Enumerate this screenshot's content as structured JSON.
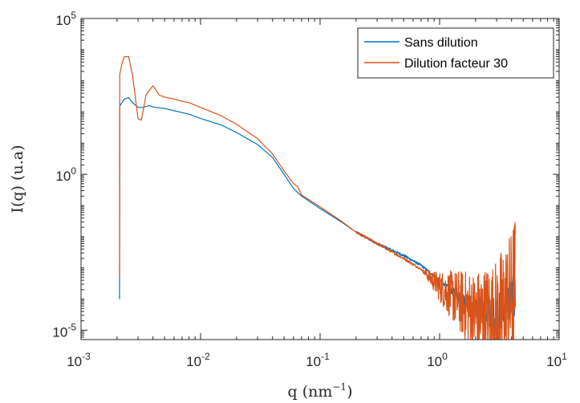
{
  "chart_data": {
    "type": "line",
    "title": "",
    "xlabel": {
      "text": "q (nm",
      "sup": "−1",
      "suffix": ")"
    },
    "ylabel": "I(q) (u.a)",
    "xscale": "log",
    "yscale": "log",
    "xlim": [
      0.001,
      10
    ],
    "ylim": [
      5e-06,
      100000
    ],
    "x_ticks": [
      {
        "value": 0.001,
        "base": "10",
        "exp": "-3"
      },
      {
        "value": 0.01,
        "base": "10",
        "exp": "-2"
      },
      {
        "value": 0.1,
        "base": "10",
        "exp": "-1"
      },
      {
        "value": 1,
        "base": "10",
        "exp": "0"
      },
      {
        "value": 10,
        "base": "10",
        "exp": "1"
      }
    ],
    "y_ticks": [
      {
        "value": 1e-05,
        "base": "10",
        "exp": "-5"
      },
      {
        "value": 1,
        "base": "10",
        "exp": "0"
      },
      {
        "value": 100000,
        "base": "10",
        "exp": "5"
      }
    ],
    "grid": false,
    "legend_position": "top-right",
    "series": [
      {
        "name": "Sans dilution",
        "color": "#0072BD",
        "noise_from_q": 1.0,
        "noise_amp_decades": 0.9,
        "points": [
          [
            0.0021,
            150
          ],
          [
            0.0023,
            260
          ],
          [
            0.0025,
            290
          ],
          [
            0.0027,
            200
          ],
          [
            0.003,
            140
          ],
          [
            0.0033,
            140
          ],
          [
            0.0037,
            160
          ],
          [
            0.0042,
            140
          ],
          [
            0.005,
            130
          ],
          [
            0.006,
            110
          ],
          [
            0.008,
            85
          ],
          [
            0.01,
            62
          ],
          [
            0.015,
            38
          ],
          [
            0.02,
            22
          ],
          [
            0.03,
            9
          ],
          [
            0.04,
            3.5
          ],
          [
            0.05,
            1.0
          ],
          [
            0.06,
            0.35
          ],
          [
            0.07,
            0.2
          ],
          [
            0.1,
            0.08
          ],
          [
            0.15,
            0.03
          ],
          [
            0.2,
            0.014
          ],
          [
            0.3,
            0.006
          ],
          [
            0.5,
            0.0025
          ],
          [
            0.7,
            0.0012
          ],
          [
            1.0,
            0.0004
          ],
          [
            1.5,
            0.0001
          ],
          [
            2.0,
            5e-05
          ],
          [
            3.0,
            3e-05
          ],
          [
            4.0,
            0.0001
          ],
          [
            4.3,
            0.0001
          ]
        ]
      },
      {
        "name": "Dilution facteur 30",
        "color": "#D95319",
        "noise_from_q": 0.7,
        "noise_amp_decades": 2.2,
        "points": [
          [
            0.0021,
            1500
          ],
          [
            0.0022,
            3500
          ],
          [
            0.0023,
            6000
          ],
          [
            0.0025,
            6000
          ],
          [
            0.0027,
            1500
          ],
          [
            0.003,
            60
          ],
          [
            0.0032,
            55
          ],
          [
            0.0035,
            350
          ],
          [
            0.004,
            700
          ],
          [
            0.0045,
            350
          ],
          [
            0.005,
            300
          ],
          [
            0.006,
            260
          ],
          [
            0.007,
            220
          ],
          [
            0.008,
            200
          ],
          [
            0.01,
            140
          ],
          [
            0.015,
            75
          ],
          [
            0.02,
            40
          ],
          [
            0.03,
            14
          ],
          [
            0.04,
            4.5
          ],
          [
            0.05,
            1.3
          ],
          [
            0.06,
            0.5
          ],
          [
            0.065,
            0.4
          ],
          [
            0.07,
            0.22
          ],
          [
            0.1,
            0.09
          ],
          [
            0.15,
            0.032
          ],
          [
            0.2,
            0.014
          ],
          [
            0.3,
            0.006
          ],
          [
            0.5,
            0.002
          ],
          [
            0.7,
            0.0009
          ],
          [
            1.0,
            0.00025
          ],
          [
            1.5,
            8e-05
          ],
          [
            2.0,
            3e-05
          ],
          [
            3.0,
            2e-05
          ],
          [
            4.0,
            0.0001
          ],
          [
            4.3,
            0.0005
          ]
        ]
      }
    ]
  }
}
